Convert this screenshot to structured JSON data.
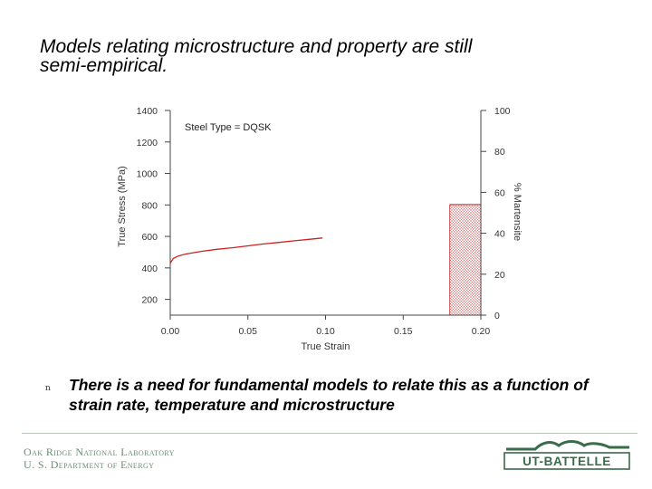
{
  "slide": {
    "title_line1": "Models relating microstructure and property are still",
    "title_line2": "semi-empirical.",
    "bullet_marker": "n",
    "bullet_text": "There is a need for fundamental models to relate this as a function of strain rate, temperature and microstructure"
  },
  "footer": {
    "ornl_line1": "Oak Ridge National Laboratory",
    "ornl_line2": "U. S. Department of Energy",
    "ut_logo_text": "UT-BATTELLE"
  },
  "colors": {
    "curve": "#cc2222",
    "hatch": "#cc4444",
    "axis": "#444444",
    "footer_green": "#6f8c74",
    "logo_green": "#3a6b4a"
  },
  "chart_data": {
    "type": "line",
    "annotation": "Steel Type = DQSK",
    "xlabel": "True Strain",
    "ylabel": "True Stress (MPa)",
    "y2label": "% Martensite",
    "xlim": [
      0.0,
      0.2
    ],
    "ylim": [
      100,
      1400
    ],
    "y2lim": [
      0,
      100
    ],
    "x_ticks": [
      "0.00",
      "0.05",
      "0.10",
      "0.15",
      "0.20"
    ],
    "y_ticks": [
      "200",
      "400",
      "600",
      "800",
      "1000",
      "1200",
      "1400"
    ],
    "y2_ticks": [
      "0",
      "20",
      "40",
      "60",
      "80",
      "100"
    ],
    "grid": false,
    "series": [
      {
        "axis": "left",
        "x": [
          0.0,
          0.002,
          0.005,
          0.01,
          0.02,
          0.03,
          0.04,
          0.05,
          0.06,
          0.07,
          0.08,
          0.09,
          0.098
        ],
        "y": [
          430,
          460,
          475,
          488,
          505,
          518,
          528,
          540,
          552,
          562,
          572,
          582,
          590
        ]
      }
    ],
    "bars": [
      {
        "axis": "right",
        "x_start": 0.18,
        "x_end": 0.2,
        "value": 54,
        "fill": "hatched"
      }
    ]
  }
}
